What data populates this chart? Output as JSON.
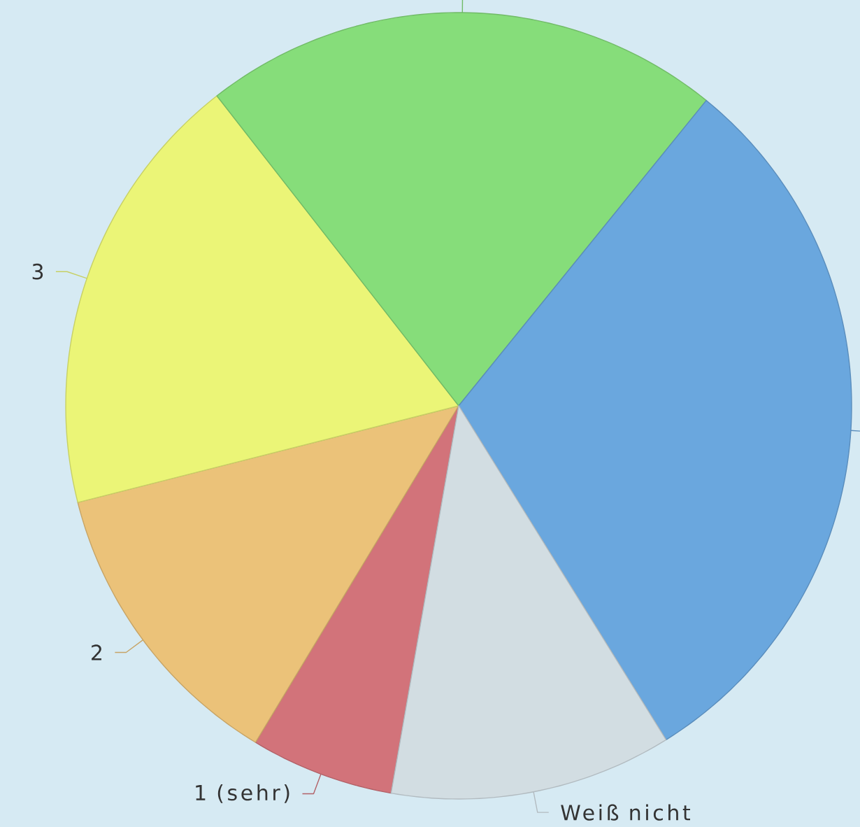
{
  "chart_data": {
    "type": "pie",
    "categories": [
      "1 (sehr)",
      "2",
      "3",
      null,
      null,
      "Weiß nicht"
    ],
    "values": [
      5.9,
      12.4,
      18.4,
      21.4,
      30.3,
      11.6
    ],
    "colors": [
      "#d2737a",
      "#ebc279",
      "#ebf577",
      "#86dd7a",
      "#6aa7de",
      "#d2dde2"
    ]
  }
}
